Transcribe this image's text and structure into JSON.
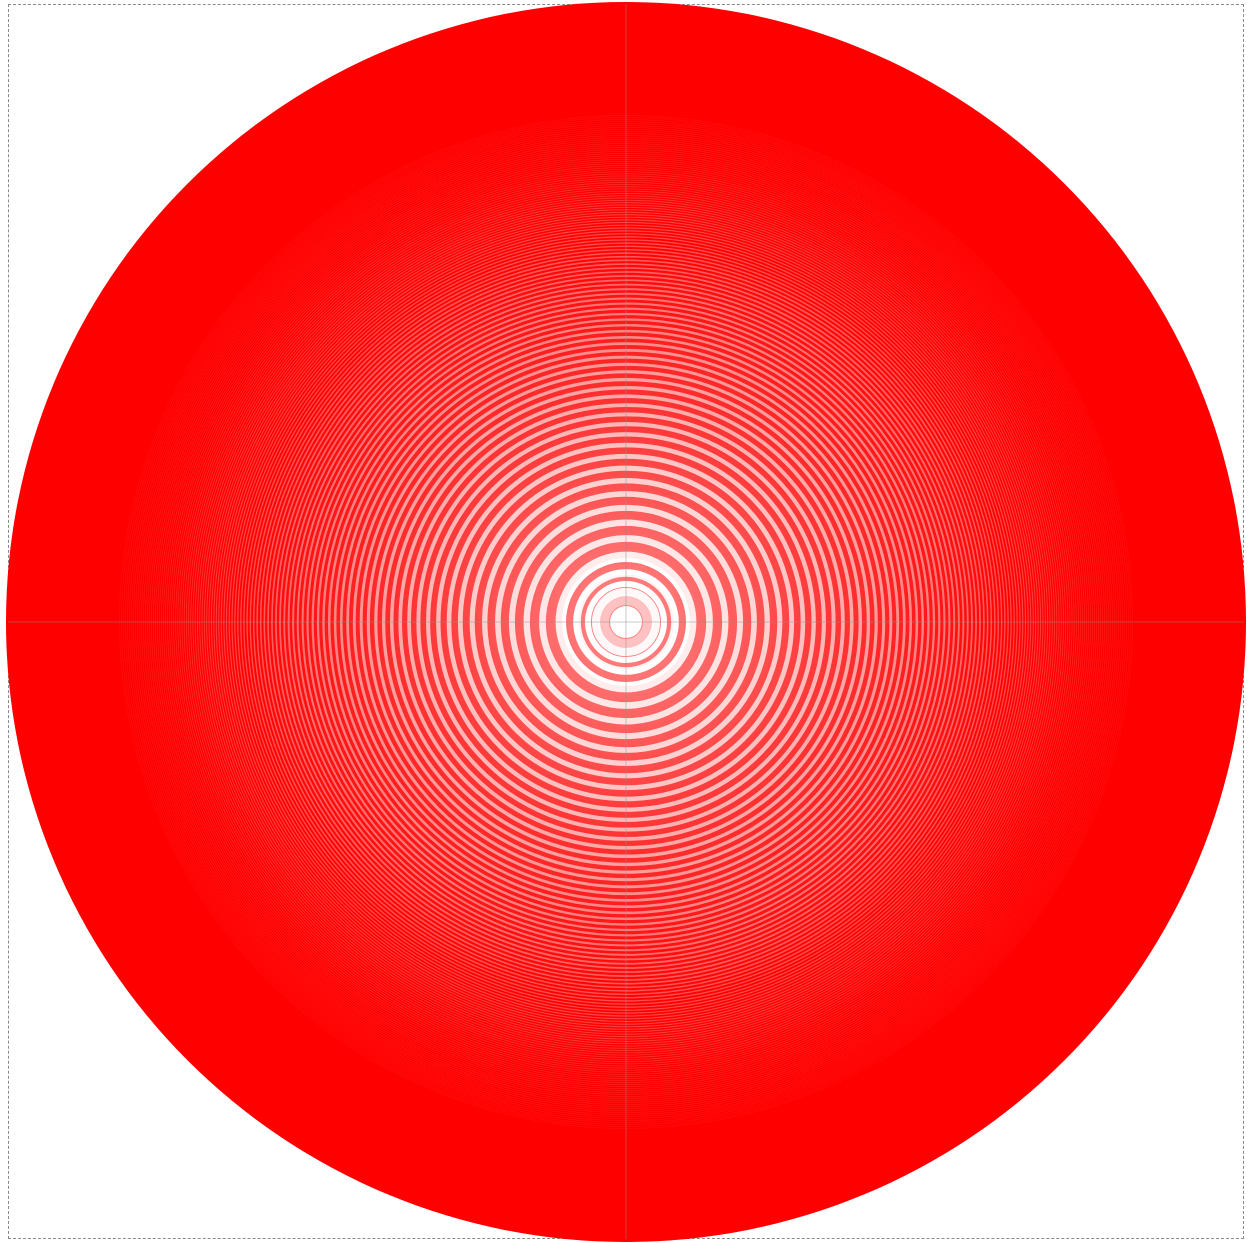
{
  "figure": {
    "kind": "concentric-ring-pattern",
    "ring_color": "#ff0000",
    "background_color": "#ffffff",
    "frame_style": "dashed-border",
    "frame_color": "#8a8a8a",
    "center_marker": "crosshair"
  }
}
